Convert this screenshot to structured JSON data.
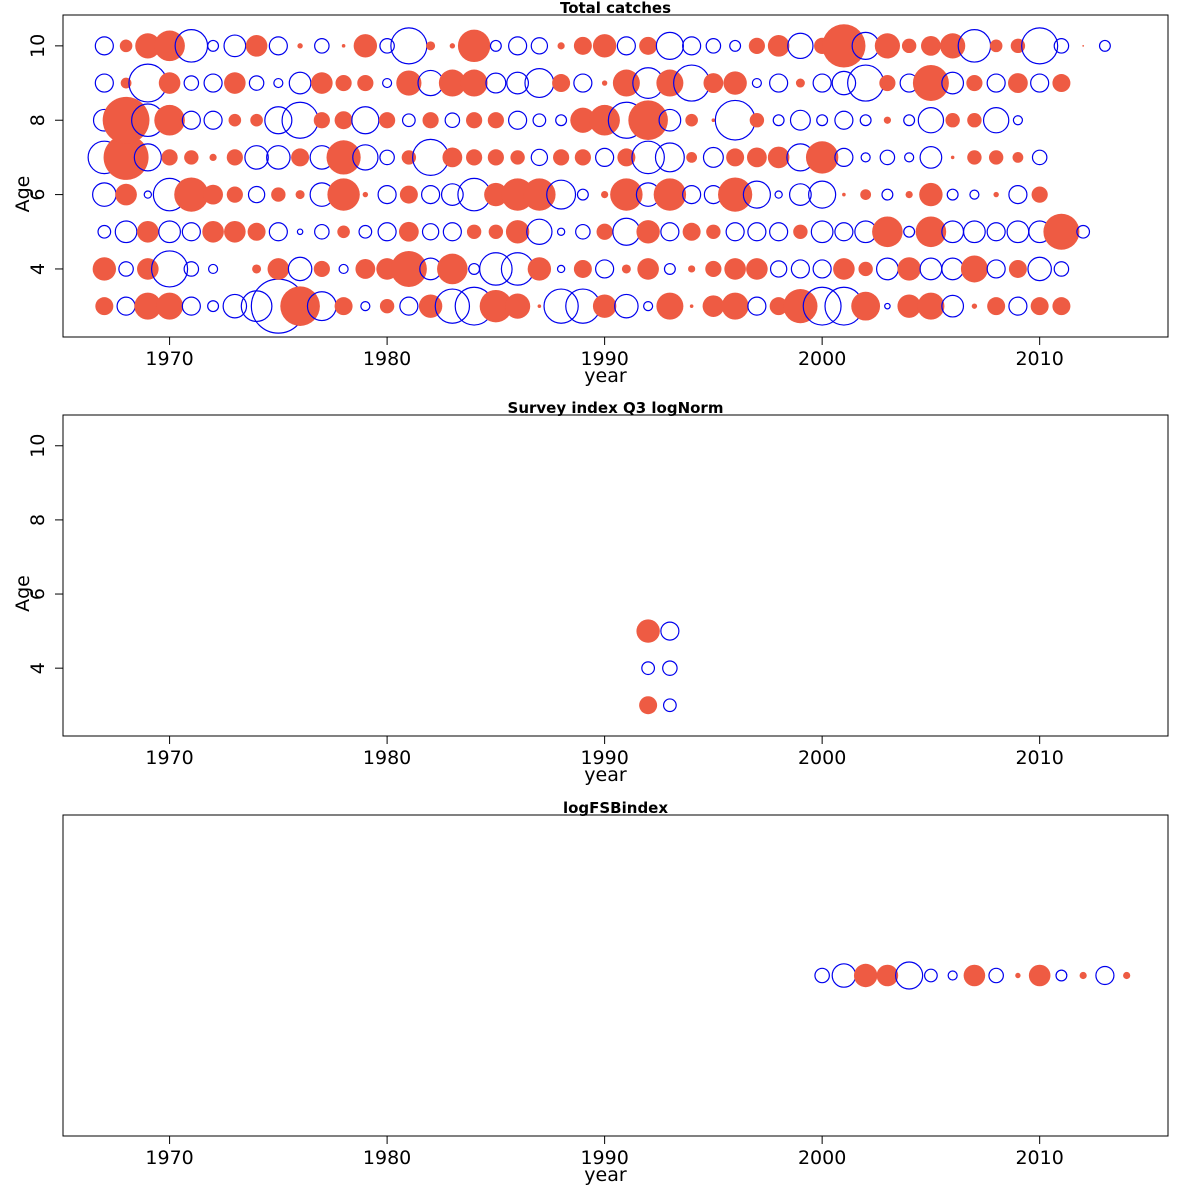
{
  "colors": {
    "positive_fill": "#ee5b43",
    "negative_stroke": "#0000ee",
    "frame": "#000000",
    "background": "#ffffff"
  },
  "chart_data": [
    {
      "type": "scatter",
      "subtype": "bubble-residuals",
      "title": "Total catches",
      "xlabel": "year",
      "ylabel": "Age",
      "xlim": [
        1965.1,
        2015.9
      ],
      "ylim": [
        2.17,
        10.83
      ],
      "xticks": [
        1970,
        1980,
        1990,
        2000,
        2010
      ],
      "yticks": [
        4,
        6,
        8,
        10
      ],
      "years_start": 1967,
      "ages": [
        3,
        4,
        5,
        6,
        7,
        8,
        9,
        10
      ],
      "residuals": {
        "3": [
          1.0,
          -1.0,
          1.5,
          1.5,
          -1.0,
          -0.6,
          -1.3,
          -1.7,
          -3.0,
          2.2,
          -1.6,
          1.0,
          -0.5,
          0.8,
          -1.0,
          1.3,
          -1.9,
          -2.1,
          1.8,
          1.4,
          0.2,
          -1.9,
          -1.9,
          1.3,
          -1.3,
          -0.5,
          1.5,
          0.2,
          1.2,
          1.5,
          -1.0,
          1.0,
          1.9,
          -2.1,
          -2.1,
          1.6,
          -0.3,
          1.3,
          1.5,
          -1.2,
          0.3,
          1.0,
          -1.0,
          1.0,
          1.0
        ],
        "4": [
          1.3,
          -0.8,
          1.2,
          -2.0,
          -0.8,
          -0.5,
          0,
          0.5,
          1.2,
          -1.3,
          0.9,
          -0.5,
          1.1,
          1.2,
          2.0,
          -1.2,
          1.7,
          -0.6,
          -1.8,
          -1.8,
          1.3,
          -0.4,
          1.0,
          -1.0,
          0.5,
          1.2,
          -0.6,
          0.4,
          0.9,
          1.2,
          1.2,
          -0.9,
          -1.0,
          -1.0,
          1.2,
          0.8,
          -1.2,
          1.3,
          -1.2,
          -1.2,
          1.5,
          -1.0,
          1.0,
          -1.3,
          -0.8
        ],
        "5": [
          -0.7,
          -1.2,
          1.2,
          -1.2,
          -1.0,
          1.2,
          1.2,
          1.0,
          -1.0,
          -0.3,
          -0.8,
          0.7,
          -0.7,
          -1.0,
          1.1,
          -0.9,
          -1.0,
          0.8,
          0.8,
          1.3,
          -1.4,
          -0.4,
          -0.8,
          0.9,
          -1.5,
          1.3,
          -1.0,
          1.0,
          0.8,
          -1.0,
          -1.0,
          -1.0,
          0.8,
          -1.2,
          -1.0,
          -1.2,
          1.7,
          -0.6,
          1.7,
          -1.2,
          -1.2,
          -1.0,
          -1.2,
          -1.2,
          2.0,
          -0.7
        ],
        "6": [
          -1.3,
          1.2,
          -0.4,
          -1.8,
          1.9,
          1.1,
          0.9,
          -0.9,
          0.8,
          0.5,
          -1.3,
          1.8,
          0.3,
          -1.0,
          1.0,
          -1.0,
          -1.2,
          -1.8,
          1.3,
          1.8,
          1.8,
          -1.6,
          -0.6,
          0.4,
          1.8,
          -1.3,
          1.8,
          -1.0,
          -1.0,
          1.9,
          -1.5,
          -0.4,
          -1.2,
          -1.5,
          0.2,
          0.6,
          -0.6,
          0.4,
          1.3,
          -0.6,
          -0.5,
          0.3,
          -1.0,
          0.9
        ],
        "7": [
          -1.8,
          2.5,
          -1.5,
          0.9,
          0.8,
          0.4,
          0.9,
          -1.3,
          -1.3,
          1.0,
          -1.3,
          1.9,
          -1.4,
          -0.8,
          0.8,
          -2.0,
          1.1,
          0.9,
          0.9,
          0.8,
          -0.9,
          0.9,
          0.9,
          -1.0,
          1.0,
          -1.8,
          -1.6,
          0.6,
          -1.1,
          1.0,
          1.1,
          1.2,
          -1.5,
          1.8,
          -1.0,
          -0.5,
          -0.8,
          -0.5,
          -1.2,
          0.2,
          0.8,
          0.8,
          0.6,
          -0.8
        ],
        "8": [
          -1.2,
          2.6,
          -1.8,
          1.7,
          -1.0,
          -1.0,
          0.7,
          0.7,
          -1.5,
          -2.0,
          0.9,
          1.0,
          -1.5,
          0.9,
          -0.7,
          0.9,
          -0.8,
          0.9,
          0.9,
          -1.0,
          -0.7,
          -0.6,
          1.4,
          1.7,
          -2.0,
          2.2,
          -1.2,
          0.7,
          0.2,
          -2.2,
          0.8,
          -0.6,
          -1.1,
          -0.6,
          -1.0,
          -0.6,
          0.4,
          -0.6,
          -1.4,
          0.8,
          0.8,
          -1.4,
          -0.5
        ],
        "9": [
          -1.0,
          0.6,
          -2.1,
          1.2,
          -0.8,
          -1.0,
          1.2,
          -0.8,
          -0.5,
          -1.2,
          1.2,
          0.9,
          0.9,
          -0.5,
          1.4,
          -1.4,
          1.5,
          1.5,
          -1.1,
          -1.2,
          -1.6,
          1.0,
          -1.0,
          0.3,
          1.5,
          -1.7,
          1.5,
          -2.0,
          1.1,
          1.3,
          -0.5,
          -1.0,
          0.5,
          -1.0,
          -1.3,
          -2.0,
          0.9,
          -1.0,
          2.0,
          -1.2,
          0.9,
          -1.0,
          1.1,
          -1.0,
          1.0
        ],
        "10": [
          -1.0,
          0.7,
          1.4,
          1.7,
          -1.8,
          -0.6,
          -1.2,
          1.2,
          -1.0,
          0.3,
          -0.8,
          0.2,
          1.3,
          -0.8,
          -2.0,
          0.5,
          0.3,
          1.8,
          -0.6,
          -1.0,
          -0.9,
          0.4,
          1.0,
          1.3,
          -1.0,
          1.0,
          -1.5,
          -1.0,
          -0.8,
          -0.6,
          0.9,
          1.2,
          -1.4,
          0.9,
          2.4,
          -1.5,
          1.4,
          0.8,
          1.1,
          1.4,
          -1.8,
          0.7,
          0.8,
          -2.0,
          -0.8,
          0.1,
          -0.6
        ]
      }
    },
    {
      "type": "scatter",
      "subtype": "bubble-residuals",
      "title": "Survey index Q3 logNorm",
      "xlabel": "year",
      "ylabel": "Age",
      "xlim": [
        1965.1,
        2015.9
      ],
      "ylim": [
        2.17,
        10.83
      ],
      "xticks": [
        1970,
        1980,
        1990,
        2000,
        2010
      ],
      "yticks": [
        4,
        6,
        8,
        10
      ],
      "years_start": 1992,
      "ages": [
        3,
        4,
        5
      ],
      "residuals": {
        "3": [
          1.0,
          -0.7
        ],
        "4": [
          -0.7,
          -0.8
        ],
        "5": [
          1.3,
          -1.0
        ]
      }
    },
    {
      "type": "scatter",
      "subtype": "bubble-residuals",
      "title": "logFSBindex",
      "xlabel": "year",
      "ylabel": "",
      "xlim": [
        1965.1,
        2015.9
      ],
      "ylim": [
        0,
        1
      ],
      "xticks": [
        1970,
        1980,
        1990,
        2000,
        2010
      ],
      "yticks": [],
      "years_start": 2000,
      "row_value": 0.5,
      "residuals": {
        "0": [
          -0.8,
          -1.3,
          1.3,
          1.2,
          -1.5,
          -0.7,
          -0.5,
          1.2,
          -0.8,
          0.3,
          1.2,
          -0.6,
          0.4,
          -1.0,
          0.4
        ]
      }
    }
  ]
}
